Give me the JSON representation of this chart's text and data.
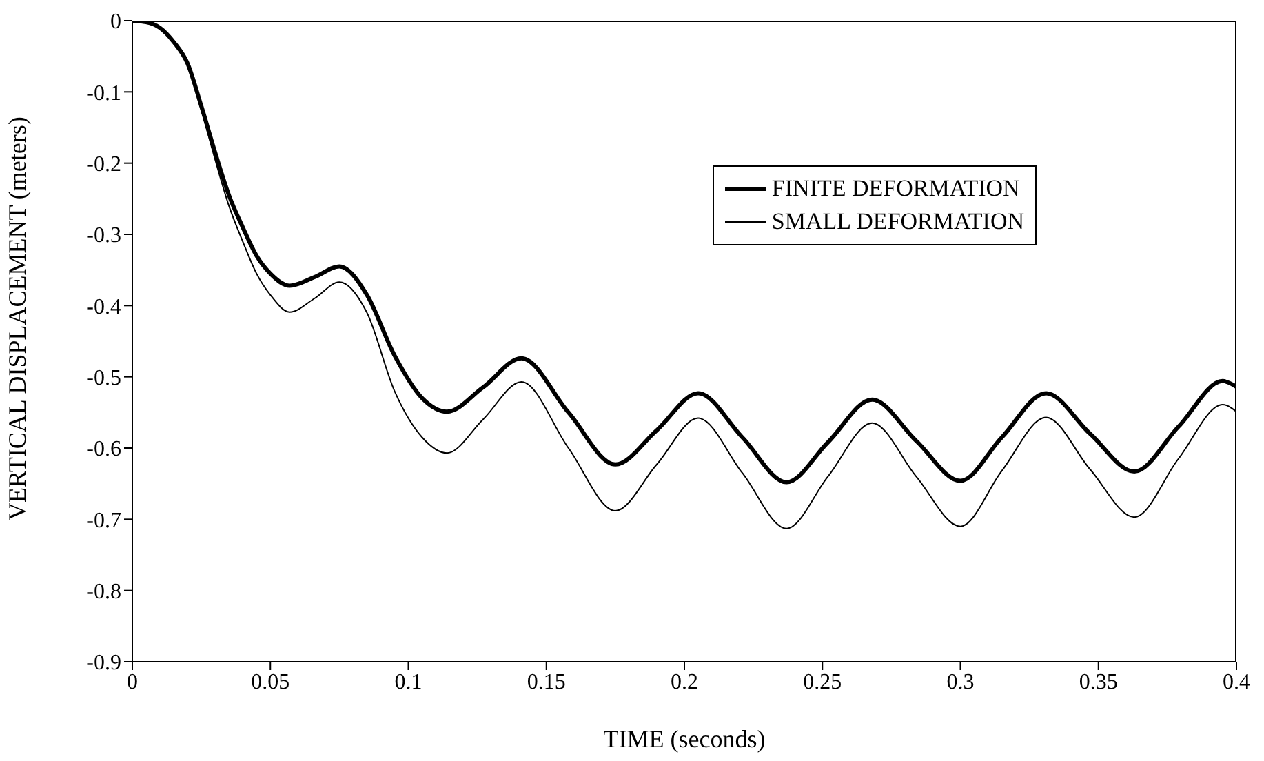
{
  "chart_data": {
    "type": "line",
    "xlabel": "TIME (seconds)",
    "ylabel": "VERTICAL DISPLACEMENT (meters)",
    "x": [
      0,
      0.005,
      0.01,
      0.015,
      0.02,
      0.025,
      0.03,
      0.035,
      0.04,
      0.045,
      0.05,
      0.057,
      0.066,
      0.075,
      0.085,
      0.095,
      0.105,
      0.114,
      0.127,
      0.141,
      0.158,
      0.175,
      0.19,
      0.205,
      0.221,
      0.237,
      0.252,
      0.268,
      0.284,
      0.3,
      0.315,
      0.331,
      0.347,
      0.363,
      0.379,
      0.395,
      0.4
    ],
    "series": [
      {
        "name": "FINITE DEFORMATION",
        "color": "#000000",
        "values": [
          0,
          -0.002,
          -0.01,
          -0.03,
          -0.06,
          -0.12,
          -0.185,
          -0.245,
          -0.29,
          -0.33,
          -0.355,
          -0.372,
          -0.36,
          -0.345,
          -0.385,
          -0.47,
          -0.53,
          -0.549,
          -0.515,
          -0.474,
          -0.55,
          -0.623,
          -0.575,
          -0.523,
          -0.585,
          -0.648,
          -0.592,
          -0.532,
          -0.59,
          -0.646,
          -0.585,
          -0.523,
          -0.58,
          -0.633,
          -0.57,
          -0.506,
          -0.514
        ]
      },
      {
        "name": "SMALL DEFORMATION",
        "color": "#000000",
        "values": [
          0,
          -0.002,
          -0.01,
          -0.03,
          -0.06,
          -0.125,
          -0.195,
          -0.26,
          -0.31,
          -0.355,
          -0.385,
          -0.409,
          -0.39,
          -0.367,
          -0.41,
          -0.52,
          -0.585,
          -0.607,
          -0.56,
          -0.507,
          -0.6,
          -0.688,
          -0.623,
          -0.558,
          -0.635,
          -0.713,
          -0.64,
          -0.565,
          -0.64,
          -0.71,
          -0.632,
          -0.557,
          -0.63,
          -0.697,
          -0.615,
          -0.539,
          -0.549
        ]
      }
    ],
    "xlim": [
      0,
      0.4
    ],
    "xticks": [
      0,
      0.05,
      0.1,
      0.15,
      0.2,
      0.25,
      0.3,
      0.35,
      0.4
    ],
    "ylim": [
      -0.9,
      0
    ],
    "yticks": [
      -0.9,
      -0.8,
      -0.7,
      -0.6,
      -0.5,
      -0.4,
      -0.3,
      -0.2,
      -0.1,
      0
    ],
    "legend": "top right",
    "grid": false,
    "marker": "none",
    "line_style": "solid"
  }
}
